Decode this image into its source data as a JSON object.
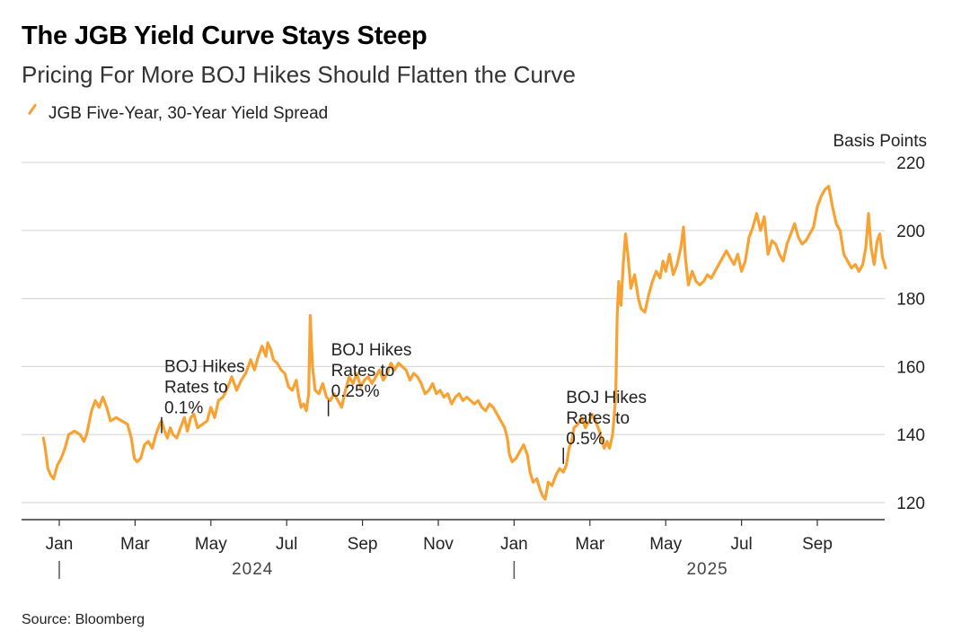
{
  "title": "The JGB Yield Curve Stays Steep",
  "subtitle": "Pricing For More BOJ Hikes Should Flatten the Curve",
  "source": "Source: Bloomberg",
  "colors": {
    "series": "#F7A233",
    "grid": "#d9d9d9",
    "axis": "#333333",
    "text": "#222222"
  },
  "chart_data": {
    "type": "line",
    "title": "The JGB Yield Curve Stays Steep",
    "subtitle": "Pricing For More BOJ Hikes Should Flatten the Curve",
    "ylabel": "Basis Points",
    "ylim": [
      115,
      220
    ],
    "yticks": [
      120,
      140,
      160,
      180,
      200,
      220
    ],
    "grid": true,
    "legend": [
      {
        "name": "JGB Five-Year, 30-Year Yield Spread",
        "color": "#F7A233",
        "position": "top-left"
      }
    ],
    "x_tick_labels": [
      {
        "m": 1,
        "label": "Jan"
      },
      {
        "m": 3,
        "label": "Mar"
      },
      {
        "m": 5,
        "label": "May"
      },
      {
        "m": 7,
        "label": "Jul"
      },
      {
        "m": 9,
        "label": "Sep"
      },
      {
        "m": 11,
        "label": "Nov"
      },
      {
        "m": 13,
        "label": "Jan"
      },
      {
        "m": 15,
        "label": "Mar"
      },
      {
        "m": 17,
        "label": "May"
      },
      {
        "m": 19,
        "label": "Jul"
      },
      {
        "m": 21,
        "label": "Sep"
      }
    ],
    "year_labels": [
      {
        "m": 6.1,
        "label": "2024"
      },
      {
        "m": 18.1,
        "label": "2025"
      }
    ],
    "year_dividers": [
      1,
      13
    ],
    "annotations": [
      {
        "m": 3.7,
        "y": 142.5,
        "lines": [
          "BOJ Hikes",
          "Rates to",
          "0.1%"
        ]
      },
      {
        "m": 8.1,
        "y": 147.5,
        "lines": [
          "BOJ Hikes",
          "Rates to",
          "0.25%"
        ]
      },
      {
        "m": 14.3,
        "y": 133.5,
        "lines": [
          "BOJ Hikes",
          "Rates to",
          "0.5%"
        ]
      }
    ],
    "series": [
      {
        "name": "JGB Five-Year, 30-Year Yield Spread",
        "x_unit": "months since Dec 1, 2023",
        "points": [
          [
            0.58,
            139
          ],
          [
            0.63,
            136
          ],
          [
            0.7,
            130
          ],
          [
            0.78,
            128
          ],
          [
            0.85,
            127
          ],
          [
            0.95,
            131
          ],
          [
            1.05,
            133
          ],
          [
            1.15,
            136
          ],
          [
            1.25,
            140
          ],
          [
            1.4,
            141
          ],
          [
            1.55,
            140
          ],
          [
            1.65,
            138
          ],
          [
            1.72,
            140
          ],
          [
            1.85,
            147
          ],
          [
            1.95,
            150
          ],
          [
            2.05,
            148
          ],
          [
            2.15,
            151
          ],
          [
            2.25,
            148
          ],
          [
            2.35,
            144
          ],
          [
            2.5,
            145
          ],
          [
            2.65,
            144
          ],
          [
            2.8,
            143
          ],
          [
            2.9,
            139
          ],
          [
            2.98,
            133
          ],
          [
            3.05,
            132
          ],
          [
            3.15,
            133
          ],
          [
            3.25,
            137
          ],
          [
            3.35,
            138
          ],
          [
            3.45,
            136
          ],
          [
            3.55,
            140
          ],
          [
            3.65,
            143
          ],
          [
            3.7,
            144
          ],
          [
            3.78,
            141
          ],
          [
            3.85,
            139
          ],
          [
            3.93,
            142
          ],
          [
            4.0,
            140
          ],
          [
            4.1,
            139
          ],
          [
            4.2,
            142
          ],
          [
            4.3,
            145
          ],
          [
            4.38,
            141
          ],
          [
            4.47,
            145
          ],
          [
            4.55,
            146
          ],
          [
            4.65,
            142
          ],
          [
            4.78,
            143
          ],
          [
            4.9,
            144
          ],
          [
            5.0,
            148
          ],
          [
            5.1,
            145
          ],
          [
            5.2,
            150
          ],
          [
            5.32,
            151
          ],
          [
            5.45,
            154
          ],
          [
            5.55,
            157
          ],
          [
            5.68,
            153
          ],
          [
            5.8,
            156
          ],
          [
            5.92,
            158
          ],
          [
            6.05,
            162
          ],
          [
            6.15,
            159
          ],
          [
            6.25,
            163
          ],
          [
            6.35,
            166
          ],
          [
            6.45,
            163
          ],
          [
            6.5,
            167
          ],
          [
            6.58,
            165
          ],
          [
            6.65,
            162
          ],
          [
            6.75,
            161
          ],
          [
            6.85,
            159
          ],
          [
            6.95,
            158
          ],
          [
            7.05,
            154
          ],
          [
            7.15,
            153
          ],
          [
            7.25,
            156
          ],
          [
            7.32,
            151
          ],
          [
            7.38,
            148
          ],
          [
            7.45,
            149
          ],
          [
            7.52,
            147
          ],
          [
            7.58,
            152
          ],
          [
            7.62,
            175
          ],
          [
            7.68,
            160
          ],
          [
            7.75,
            153
          ],
          [
            7.85,
            152
          ],
          [
            7.95,
            155
          ],
          [
            8.05,
            151
          ],
          [
            8.15,
            150
          ],
          [
            8.25,
            152
          ],
          [
            8.35,
            150
          ],
          [
            8.45,
            148
          ],
          [
            8.55,
            153
          ],
          [
            8.65,
            157
          ],
          [
            8.75,
            155
          ],
          [
            8.85,
            158
          ],
          [
            8.95,
            154
          ],
          [
            9.05,
            156
          ],
          [
            9.15,
            157
          ],
          [
            9.25,
            155
          ],
          [
            9.35,
            157
          ],
          [
            9.45,
            159
          ],
          [
            9.55,
            156
          ],
          [
            9.65,
            158
          ],
          [
            9.75,
            161
          ],
          [
            9.85,
            159
          ],
          [
            9.95,
            161
          ],
          [
            10.05,
            160
          ],
          [
            10.15,
            159
          ],
          [
            10.25,
            156
          ],
          [
            10.35,
            158
          ],
          [
            10.45,
            157
          ],
          [
            10.55,
            155
          ],
          [
            10.65,
            152
          ],
          [
            10.75,
            153
          ],
          [
            10.85,
            155
          ],
          [
            10.95,
            152
          ],
          [
            11.05,
            153
          ],
          [
            11.15,
            151
          ],
          [
            11.25,
            152
          ],
          [
            11.35,
            149
          ],
          [
            11.45,
            151
          ],
          [
            11.55,
            152
          ],
          [
            11.65,
            150
          ],
          [
            11.75,
            151
          ],
          [
            11.85,
            150
          ],
          [
            11.95,
            149
          ],
          [
            12.05,
            150
          ],
          [
            12.15,
            148
          ],
          [
            12.25,
            147
          ],
          [
            12.35,
            149
          ],
          [
            12.45,
            148
          ],
          [
            12.55,
            146
          ],
          [
            12.65,
            144
          ],
          [
            12.75,
            142
          ],
          [
            12.82,
            139
          ],
          [
            12.88,
            134
          ],
          [
            12.95,
            132
          ],
          [
            13.05,
            133
          ],
          [
            13.15,
            135
          ],
          [
            13.25,
            137
          ],
          [
            13.35,
            134
          ],
          [
            13.42,
            129
          ],
          [
            13.5,
            126
          ],
          [
            13.6,
            127
          ],
          [
            13.68,
            124
          ],
          [
            13.75,
            122
          ],
          [
            13.82,
            121
          ],
          [
            13.9,
            126
          ],
          [
            14.0,
            125
          ],
          [
            14.1,
            128
          ],
          [
            14.2,
            130
          ],
          [
            14.3,
            129
          ],
          [
            14.38,
            131
          ],
          [
            14.45,
            136
          ],
          [
            14.52,
            138
          ],
          [
            14.58,
            142
          ],
          [
            14.68,
            143
          ],
          [
            14.78,
            145
          ],
          [
            14.88,
            142
          ],
          [
            14.98,
            144
          ],
          [
            15.05,
            146
          ],
          [
            15.15,
            144
          ],
          [
            15.25,
            141
          ],
          [
            15.32,
            138
          ],
          [
            15.38,
            136
          ],
          [
            15.45,
            138
          ],
          [
            15.52,
            136
          ],
          [
            15.6,
            140
          ],
          [
            15.68,
            151
          ],
          [
            15.72,
            175
          ],
          [
            15.76,
            185
          ],
          [
            15.82,
            178
          ],
          [
            15.88,
            190
          ],
          [
            15.94,
            199
          ],
          [
            16.0,
            193
          ],
          [
            16.08,
            183
          ],
          [
            16.18,
            187
          ],
          [
            16.28,
            180
          ],
          [
            16.35,
            177
          ],
          [
            16.45,
            176
          ],
          [
            16.55,
            181
          ],
          [
            16.65,
            185
          ],
          [
            16.75,
            188
          ],
          [
            16.85,
            186
          ],
          [
            16.93,
            191
          ],
          [
            17.0,
            188
          ],
          [
            17.1,
            193
          ],
          [
            17.2,
            187
          ],
          [
            17.3,
            190
          ],
          [
            17.4,
            195
          ],
          [
            17.47,
            201
          ],
          [
            17.52,
            192
          ],
          [
            17.6,
            184
          ],
          [
            17.7,
            188
          ],
          [
            17.8,
            185
          ],
          [
            17.9,
            184
          ],
          [
            18.0,
            185
          ],
          [
            18.1,
            187
          ],
          [
            18.2,
            186
          ],
          [
            18.3,
            188
          ],
          [
            18.4,
            190
          ],
          [
            18.5,
            192
          ],
          [
            18.6,
            194
          ],
          [
            18.7,
            192
          ],
          [
            18.8,
            190
          ],
          [
            18.9,
            193
          ],
          [
            19.0,
            188
          ],
          [
            19.1,
            191
          ],
          [
            19.2,
            198
          ],
          [
            19.3,
            201
          ],
          [
            19.4,
            205
          ],
          [
            19.5,
            200
          ],
          [
            19.6,
            204
          ],
          [
            19.7,
            193
          ],
          [
            19.8,
            197
          ],
          [
            19.9,
            196
          ],
          [
            20.0,
            193
          ],
          [
            20.1,
            191
          ],
          [
            20.2,
            196
          ],
          [
            20.3,
            199
          ],
          [
            20.4,
            202
          ],
          [
            20.5,
            198
          ],
          [
            20.6,
            196
          ],
          [
            20.7,
            197
          ],
          [
            20.8,
            199
          ],
          [
            20.9,
            201
          ],
          [
            21.0,
            207
          ],
          [
            21.1,
            210
          ],
          [
            21.2,
            212
          ],
          [
            21.3,
            213
          ],
          [
            21.4,
            207
          ],
          [
            21.5,
            202
          ],
          [
            21.6,
            200
          ],
          [
            21.7,
            193
          ],
          [
            21.8,
            191
          ],
          [
            21.9,
            189
          ],
          [
            22.0,
            190
          ],
          [
            22.1,
            188
          ],
          [
            22.2,
            190
          ],
          [
            22.28,
            195
          ],
          [
            22.35,
            205
          ],
          [
            22.42,
            195
          ],
          [
            22.5,
            190
          ],
          [
            22.58,
            197
          ],
          [
            22.65,
            199
          ],
          [
            22.72,
            192
          ],
          [
            22.8,
            189
          ]
        ]
      }
    ]
  }
}
